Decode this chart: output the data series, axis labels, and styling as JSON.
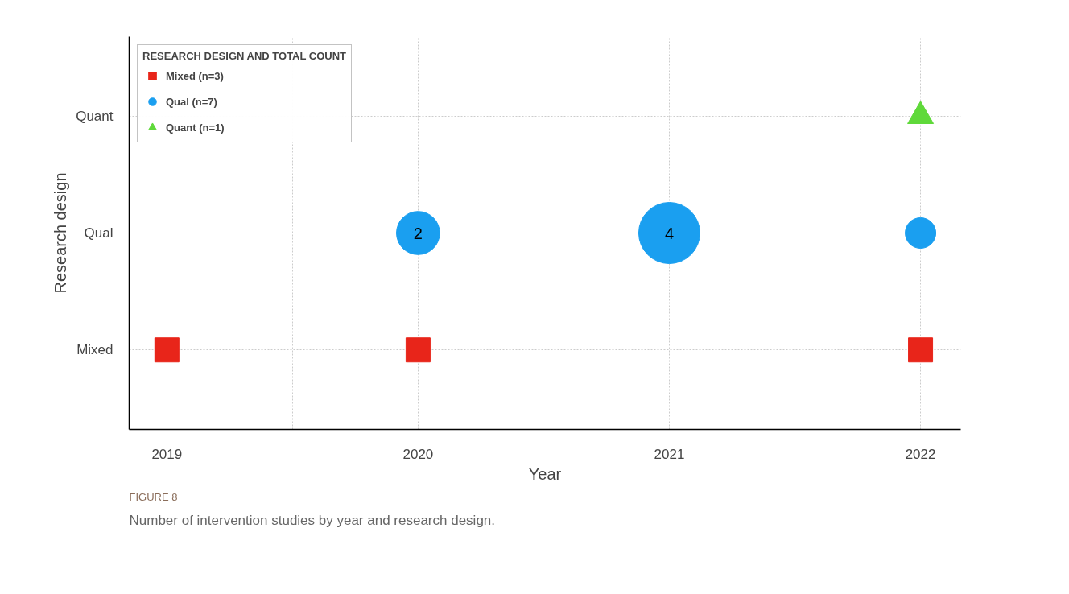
{
  "chart_data": {
    "type": "bubble",
    "orientation": "horizontal",
    "xlabel": "Year",
    "ylabel": "Research design",
    "legend_title": "RESEARCH DESIGN AND TOTAL COUNT",
    "legend": "top left",
    "grid": true,
    "categories": [
      "Quant",
      "Qual",
      "Mixed"
    ],
    "xlim": [
      2018.85,
      2022.16
    ],
    "xticks": [
      2019,
      {
        "value": 2019.5,
        "label": null
      },
      2020,
      2021,
      2022
    ],
    "series": [
      {
        "name": "Mixed (n=3)",
        "marker": "square",
        "color": "#e8251a",
        "x": [
          "Mixed",
          "Mixed",
          "Mixed"
        ],
        "values": [
          2019,
          2020,
          2022
        ]
      },
      {
        "name": "Qual (n=7)",
        "marker": "circle",
        "color": "#1a9ff0",
        "x": [
          "Qual",
          "Qual",
          "Qual"
        ],
        "values": [
          2020,
          2021,
          2022
        ],
        "sizes": [
          0.5,
          1,
          0.25
        ]
      },
      {
        "name": "Quant (n=1)",
        "marker": "triangle",
        "color": "#5fd93a",
        "x": [
          "Quant"
        ],
        "values": [
          2022
        ]
      }
    ],
    "annotations": [
      {
        "text": "2",
        "x": 2020,
        "y": "Qual"
      },
      {
        "text": "4",
        "x": 2021,
        "y": "Qual"
      },
      "FIGURE 8",
      "Number of intervention studies by year and research design."
    ]
  }
}
